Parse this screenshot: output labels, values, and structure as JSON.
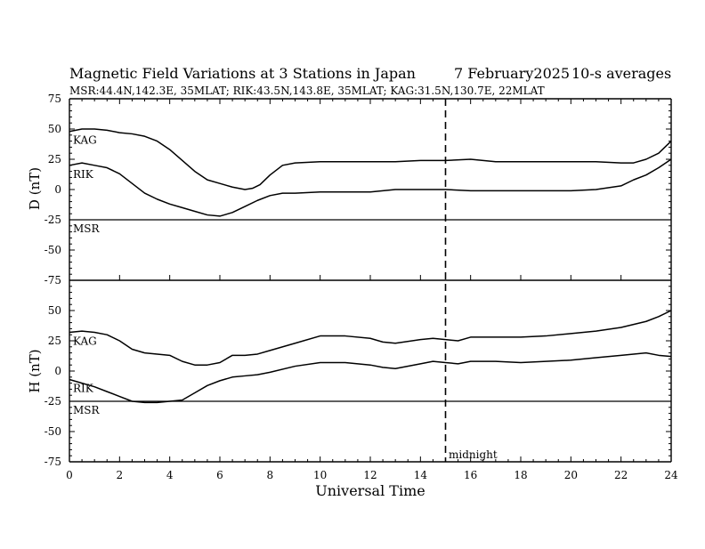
{
  "chart_data": {
    "type": "line",
    "title": "Magnetic Field Variations at 3 Stations in Japan",
    "date_label": "7   February2025",
    "averaging_label": "10-s averages",
    "station_info": "MSR:44.4N,142.3E, 35MLAT;  RIK:43.5N,143.8E, 35MLAT;  KAG:31.5N,130.7E, 22MLAT",
    "xlabel": "Universal Time",
    "xlim": [
      0,
      24
    ],
    "x_ticks": [
      "0",
      "2",
      "4",
      "6",
      "8",
      "10",
      "12",
      "14",
      "16",
      "18",
      "20",
      "22",
      "24"
    ],
    "vline": {
      "x": 15,
      "label": "midnight"
    },
    "panels": [
      {
        "ylabel": "D (nT)",
        "ylim": [
          -75,
          75
        ],
        "y_ticks": [
          "75",
          "50",
          "25",
          "0",
          "-25",
          "-50",
          "-75"
        ],
        "series": [
          {
            "name": "KAG",
            "x": [
              0,
              0.5,
              1,
              1.5,
              2,
              2.5,
              3,
              3.5,
              4,
              4.5,
              5,
              5.5,
              6,
              6.5,
              7,
              7.3,
              7.6,
              8,
              8.5,
              9,
              10,
              11,
              12,
              13,
              14,
              15,
              16,
              17,
              18,
              19,
              20,
              21,
              22,
              22.5,
              23,
              23.5,
              24
            ],
            "y": [
              48,
              50,
              50,
              49,
              47,
              46,
              44,
              40,
              33,
              24,
              15,
              8,
              5,
              2,
              0,
              1,
              4,
              12,
              20,
              22,
              23,
              23,
              23,
              23,
              24,
              24,
              25,
              23,
              23,
              23,
              23,
              23,
              22,
              22,
              25,
              30,
              40
            ]
          },
          {
            "name": "RIK",
            "x": [
              0,
              0.5,
              1,
              1.5,
              2,
              2.5,
              3,
              3.5,
              4,
              4.5,
              5,
              5.5,
              6,
              6.5,
              7,
              7.5,
              8,
              8.5,
              9,
              10,
              11,
              12,
              13,
              14,
              15,
              16,
              17,
              18,
              19,
              20,
              21,
              22,
              22.5,
              23,
              23.5,
              24
            ],
            "y": [
              20,
              22,
              20,
              18,
              13,
              5,
              -3,
              -8,
              -12,
              -15,
              -18,
              -21,
              -22,
              -19,
              -14,
              -9,
              -5,
              -3,
              -3,
              -2,
              -2,
              -2,
              0,
              0,
              0,
              -1,
              -1,
              -1,
              -1,
              -1,
              0,
              3,
              8,
              12,
              18,
              25
            ]
          },
          {
            "name": "MSR",
            "x": [
              0,
              24
            ],
            "y": [
              -25,
              -25
            ]
          }
        ]
      },
      {
        "ylabel": "H (nT)",
        "ylim": [
          -75,
          75
        ],
        "y_ticks": [
          "75",
          "50",
          "25",
          "0",
          "-25",
          "-50",
          "-75"
        ],
        "series": [
          {
            "name": "KAG",
            "x": [
              0,
              0.5,
              1,
              1.5,
              2,
              2.5,
              3,
              3.5,
              4,
              4.5,
              5,
              5.5,
              6,
              6.5,
              7,
              7.5,
              8,
              9,
              10,
              11,
              12,
              12.5,
              13,
              14,
              14.5,
              15,
              15.5,
              16,
              17,
              18,
              19,
              20,
              21,
              22,
              23,
              23.5,
              24
            ],
            "y": [
              32,
              33,
              32,
              30,
              25,
              18,
              15,
              14,
              13,
              8,
              5,
              5,
              7,
              13,
              13,
              14,
              17,
              23,
              29,
              29,
              27,
              24,
              23,
              26,
              27,
              26,
              25,
              28,
              28,
              28,
              29,
              31,
              33,
              36,
              41,
              45,
              50
            ]
          },
          {
            "name": "RIK",
            "x": [
              0,
              0.5,
              1,
              1.5,
              2,
              2.5,
              3,
              3.5,
              4,
              4.5,
              5,
              5.5,
              6,
              6.5,
              7,
              7.5,
              8,
              9,
              10,
              11,
              12,
              12.5,
              13,
              14,
              14.5,
              15,
              15.5,
              16,
              17,
              18,
              19,
              20,
              21,
              22,
              23,
              23.5,
              24
            ],
            "y": [
              -7,
              -10,
              -13,
              -17,
              -21,
              -25,
              -26,
              -26,
              -25,
              -24,
              -18,
              -12,
              -8,
              -5,
              -4,
              -3,
              -1,
              4,
              7,
              7,
              5,
              3,
              2,
              6,
              8,
              7,
              6,
              8,
              8,
              7,
              8,
              9,
              11,
              13,
              15,
              13,
              12
            ]
          },
          {
            "name": "MSR",
            "x": [
              0,
              24
            ],
            "y": [
              -25,
              -25
            ]
          }
        ]
      }
    ]
  }
}
